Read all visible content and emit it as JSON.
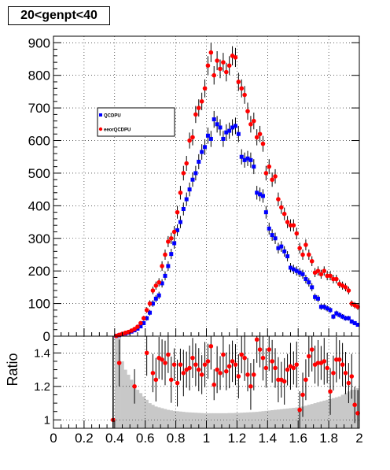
{
  "title": "20<genpt<40",
  "chart_data": [
    {
      "type": "scatter",
      "panel": "top",
      "xlim": [
        0,
        2
      ],
      "ylim": [
        0,
        920
      ],
      "yticks": [
        0,
        100,
        200,
        300,
        400,
        500,
        600,
        700,
        800,
        900
      ],
      "grid": true,
      "legend_position": "upper-left",
      "series": [
        {
          "name": "QCDPU",
          "color": "#0000ff",
          "marker": "square",
          "x": [
            0.41,
            0.43,
            0.45,
            0.47,
            0.49,
            0.51,
            0.53,
            0.55,
            0.57,
            0.59,
            0.61,
            0.63,
            0.65,
            0.67,
            0.69,
            0.71,
            0.73,
            0.75,
            0.77,
            0.79,
            0.81,
            0.83,
            0.85,
            0.87,
            0.89,
            0.91,
            0.93,
            0.95,
            0.97,
            0.99,
            1.01,
            1.03,
            1.05,
            1.07,
            1.09,
            1.11,
            1.13,
            1.15,
            1.17,
            1.19,
            1.21,
            1.23,
            1.25,
            1.27,
            1.29,
            1.31,
            1.33,
            1.35,
            1.37,
            1.39,
            1.41,
            1.43,
            1.45,
            1.47,
            1.49,
            1.51,
            1.53,
            1.55,
            1.57,
            1.59,
            1.61,
            1.63,
            1.65,
            1.67,
            1.69,
            1.71,
            1.73,
            1.75,
            1.77,
            1.79,
            1.81,
            1.83,
            1.85,
            1.87,
            1.89,
            1.91,
            1.93,
            1.95,
            1.97,
            1.99
          ],
          "y": [
            1,
            3,
            5,
            8,
            11,
            14,
            18,
            23,
            30,
            40,
            55,
            72,
            100,
            115,
            125,
            162,
            185,
            215,
            252,
            285,
            325,
            350,
            390,
            420,
            450,
            480,
            500,
            535,
            565,
            580,
            615,
            605,
            665,
            650,
            640,
            605,
            625,
            630,
            640,
            645,
            620,
            550,
            540,
            545,
            540,
            520,
            440,
            435,
            430,
            380,
            330,
            310,
            300,
            270,
            275,
            260,
            245,
            210,
            205,
            200,
            195,
            190,
            175,
            165,
            150,
            120,
            115,
            90,
            90,
            85,
            80,
            60,
            70,
            65,
            60,
            55,
            55,
            45,
            40,
            35
          ]
        },
        {
          "name": "eeorQCDPU",
          "color": "#ff0000",
          "marker": "circle",
          "x": [
            0.41,
            0.43,
            0.45,
            0.47,
            0.49,
            0.51,
            0.53,
            0.55,
            0.57,
            0.59,
            0.61,
            0.63,
            0.65,
            0.67,
            0.69,
            0.71,
            0.73,
            0.75,
            0.77,
            0.79,
            0.81,
            0.83,
            0.85,
            0.87,
            0.89,
            0.91,
            0.93,
            0.95,
            0.97,
            0.99,
            1.01,
            1.03,
            1.05,
            1.07,
            1.09,
            1.11,
            1.13,
            1.15,
            1.17,
            1.19,
            1.21,
            1.23,
            1.25,
            1.27,
            1.29,
            1.31,
            1.33,
            1.35,
            1.37,
            1.39,
            1.41,
            1.43,
            1.45,
            1.47,
            1.49,
            1.51,
            1.53,
            1.55,
            1.57,
            1.59,
            1.61,
            1.63,
            1.65,
            1.67,
            1.69,
            1.71,
            1.73,
            1.75,
            1.77,
            1.79,
            1.81,
            1.83,
            1.85,
            1.87,
            1.89,
            1.91,
            1.93,
            1.95,
            1.97,
            1.99
          ],
          "y": [
            1,
            4,
            7,
            10,
            13,
            17,
            22,
            29,
            40,
            55,
            80,
            100,
            140,
            155,
            165,
            215,
            250,
            290,
            300,
            320,
            380,
            440,
            500,
            530,
            600,
            610,
            680,
            700,
            720,
            760,
            830,
            870,
            800,
            845,
            820,
            840,
            810,
            830,
            860,
            855,
            780,
            760,
            740,
            690,
            650,
            660,
            610,
            620,
            590,
            500,
            520,
            480,
            490,
            420,
            395,
            375,
            350,
            340,
            340,
            315,
            270,
            250,
            280,
            250,
            230,
            195,
            200,
            190,
            200,
            185,
            185,
            175,
            175,
            160,
            155,
            150,
            140,
            100,
            95,
            90
          ]
        }
      ]
    },
    {
      "type": "scatter",
      "panel": "bottom",
      "xlim": [
        0,
        2
      ],
      "ylim": [
        0.95,
        1.5
      ],
      "yticks": [
        1,
        1.2,
        1.4
      ],
      "xticks": [
        0,
        0.2,
        0.4,
        0.6,
        0.8,
        1,
        1.2,
        1.4,
        1.6,
        1.8,
        2
      ],
      "xtick_labels": [
        "0",
        "0.2",
        "0.4",
        "0.6",
        "0.8",
        "1",
        "1.2",
        "1.4",
        "1.6",
        "1.8",
        "2"
      ],
      "ylabel": "Ratio",
      "grid": true,
      "background_hist": {
        "color": "#c8c8c8",
        "x": [
          0.41,
          0.43,
          0.45,
          0.47,
          0.49,
          0.51,
          0.53,
          0.55,
          0.57,
          0.59,
          0.61,
          0.63,
          0.65,
          0.67,
          0.69,
          0.71,
          0.73,
          0.75,
          0.77,
          0.79,
          0.81,
          0.83,
          0.85,
          0.87,
          0.89,
          0.91,
          0.93,
          0.95,
          0.97,
          0.99,
          1.01,
          1.03,
          1.05,
          1.07,
          1.09,
          1.11,
          1.13,
          1.15,
          1.17,
          1.19,
          1.21,
          1.23,
          1.25,
          1.27,
          1.29,
          1.31,
          1.33,
          1.35,
          1.37,
          1.39,
          1.41,
          1.43,
          1.45,
          1.47,
          1.49,
          1.51,
          1.53,
          1.55,
          1.57,
          1.59,
          1.61,
          1.63,
          1.65,
          1.67,
          1.69,
          1.71,
          1.73,
          1.75,
          1.77,
          1.79,
          1.81,
          1.83,
          1.85,
          1.87,
          1.89,
          1.91,
          1.93,
          1.95,
          1.97,
          1.99
        ],
        "y": [
          1.5,
          1.5,
          1.35,
          1.3,
          1.27,
          1.24,
          1.21,
          1.18,
          1.16,
          1.14,
          1.12,
          1.1,
          1.09,
          1.08,
          1.075,
          1.07,
          1.065,
          1.06,
          1.057,
          1.054,
          1.052,
          1.05,
          1.048,
          1.046,
          1.045,
          1.044,
          1.043,
          1.042,
          1.041,
          1.04,
          1.04,
          1.04,
          1.04,
          1.04,
          1.04,
          1.04,
          1.04,
          1.041,
          1.041,
          1.042,
          1.042,
          1.043,
          1.044,
          1.045,
          1.046,
          1.047,
          1.048,
          1.05,
          1.052,
          1.054,
          1.056,
          1.058,
          1.06,
          1.062,
          1.064,
          1.066,
          1.068,
          1.07,
          1.072,
          1.074,
          1.076,
          1.08,
          1.085,
          1.09,
          1.095,
          1.1,
          1.105,
          1.11,
          1.115,
          1.12,
          1.125,
          1.13,
          1.135,
          1.14,
          1.15,
          1.16,
          1.17,
          1.18,
          1.18,
          1.19
        ]
      },
      "series": [
        {
          "name": "",
          "color": "#ff0000",
          "x": [
            0.39,
            0.43,
            0.53,
            0.61,
            0.65,
            0.67,
            0.69,
            0.71,
            0.73,
            0.75,
            0.77,
            0.79,
            0.81,
            0.83,
            0.85,
            0.87,
            0.89,
            0.91,
            0.93,
            0.95,
            0.97,
            0.99,
            1.01,
            1.03,
            1.05,
            1.07,
            1.09,
            1.11,
            1.13,
            1.15,
            1.17,
            1.19,
            1.21,
            1.23,
            1.25,
            1.27,
            1.29,
            1.31,
            1.33,
            1.35,
            1.37,
            1.39,
            1.41,
            1.43,
            1.45,
            1.47,
            1.49,
            1.51,
            1.53,
            1.55,
            1.57,
            1.59,
            1.61,
            1.63,
            1.65,
            1.67,
            1.69,
            1.71,
            1.73,
            1.75,
            1.77,
            1.79,
            1.81,
            1.83,
            1.85,
            1.87,
            1.89,
            1.91,
            1.93,
            1.95,
            1.97,
            1.99
          ],
          "y": [
            1.0,
            1.34,
            1.2,
            1.4,
            1.28,
            1.24,
            1.37,
            1.36,
            1.34,
            1.39,
            1.24,
            1.33,
            1.22,
            1.33,
            1.28,
            1.3,
            1.31,
            1.37,
            1.33,
            1.3,
            1.27,
            1.33,
            1.35,
            1.44,
            1.21,
            1.3,
            1.28,
            1.39,
            1.29,
            1.32,
            1.35,
            1.33,
            1.26,
            1.39,
            1.37,
            1.27,
            1.2,
            1.27,
            1.48,
            1.42,
            1.37,
            1.31,
            1.42,
            1.35,
            1.31,
            1.24,
            1.24,
            1.23,
            1.3,
            1.32,
            1.31,
            1.33,
            1.06,
            1.15,
            1.24,
            1.38,
            1.42,
            1.33,
            1.34,
            1.34,
            1.35,
            1.31,
            1.17,
            1.28,
            1.36,
            1.36,
            1.33,
            1.28,
            1.22,
            1.26,
            1.09,
            1.04
          ]
        }
      ]
    }
  ]
}
